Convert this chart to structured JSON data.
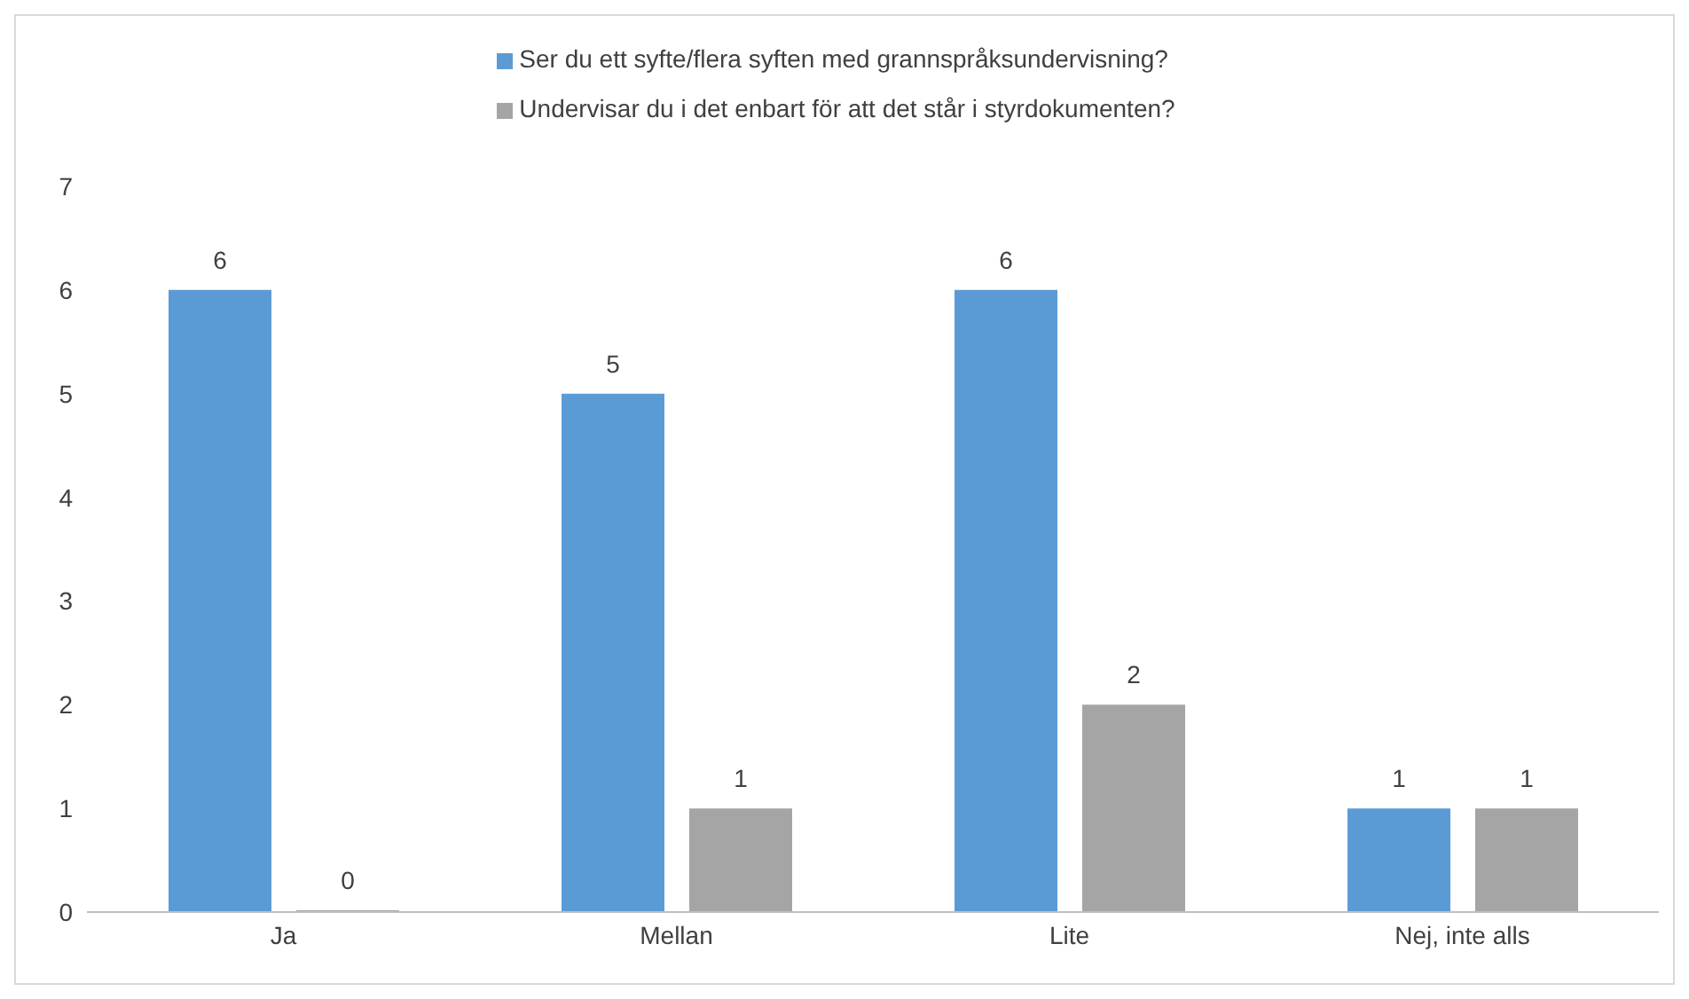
{
  "chart_data": {
    "type": "bar",
    "categories": [
      "Ja",
      "Mellan",
      "Lite",
      "Nej, inte alls"
    ],
    "series": [
      {
        "name": "Ser du ett syfte/flera syften med grannspråksundervisning?",
        "color": "#5b9bd5",
        "values": [
          6,
          5,
          6,
          1
        ]
      },
      {
        "name": "Undervisar du i det enbart för att det står i styrdokumenten?",
        "color": "#a5a5a5",
        "values": [
          0,
          1,
          2,
          1
        ]
      }
    ],
    "ylim": [
      0,
      7
    ],
    "yticks": [
      0,
      1,
      2,
      3,
      4,
      5,
      6,
      7
    ],
    "grid": false,
    "legend": "top",
    "data_labels": true
  }
}
